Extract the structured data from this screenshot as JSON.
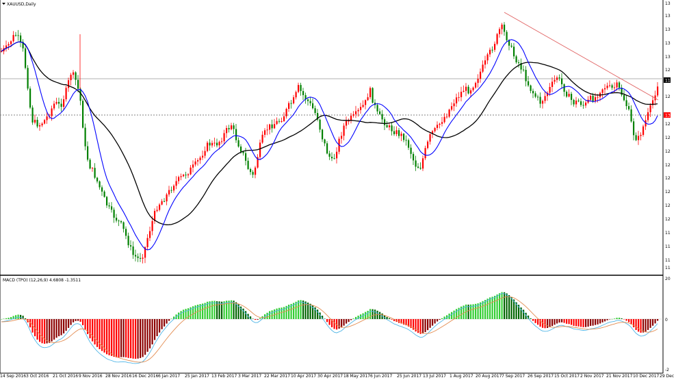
{
  "window": {
    "symbol_title": "XAUUSD,Daily",
    "macd_title": "MACD (TPO) (12,26,9) 4.6808 -1.3511"
  },
  "colors": {
    "bull": "#ff0000",
    "bear": "#008000",
    "sma_fast": "#0000ff",
    "sma_slow": "#000000",
    "trendline": "#e06060",
    "hist_pos_up": "#32cd32",
    "hist_pos_down": "#006400",
    "hist_neg_down": "#ff0000",
    "hist_neg_up": "#8b0000",
    "macd_line": "#4fb5e6",
    "signal_line": "#e38b4f",
    "grid_line": "#b0b0b0"
  },
  "price_axis": {
    "labels": [
      "13",
      "13",
      "13",
      "13",
      "13",
      "12",
      "12",
      "12",
      "12",
      "12",
      "12",
      "12",
      "12",
      "12",
      "12",
      "11",
      "11",
      "11",
      "11",
      "11"
    ],
    "current_marker": "13"
  },
  "macd_axis": {
    "labels": [
      "20",
      "0",
      "-2"
    ]
  },
  "time_axis": {
    "labels": [
      "14 Sep 2016",
      "3 Oct 2016",
      "21 Oct 2016",
      "9 Nov 2016",
      "28 Nov 2016",
      "16 Dec 2016",
      "6 Jan 2017",
      "25 Jan 2017",
      "13 Feb 2017",
      "3 Mar 2017",
      "22 Mar 2017",
      "10 Apr 2017",
      "30 Apr 2017",
      "18 May 2017",
      "6 Jun 2017",
      "25 Jun 2017",
      "13 Jul 2017",
      "1 Aug 2017",
      "20 Aug 2017",
      "7 Sep 2017",
      "26 Sep 2017",
      "15 Oct 2017",
      "2 Nov 2017",
      "21 Nov 2017",
      "10 Dec 2017",
      "29 Dec"
    ]
  }
}
